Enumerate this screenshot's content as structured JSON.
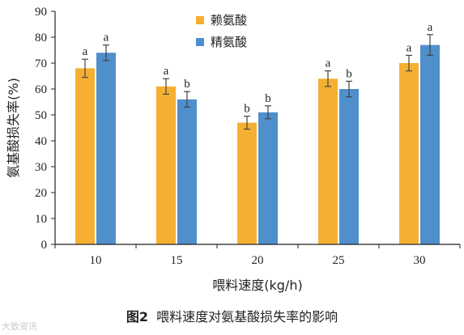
{
  "chart_data": {
    "type": "bar",
    "categories": [
      "10",
      "15",
      "20",
      "25",
      "30"
    ],
    "xlabel": "喂料速度(kg/h)",
    "ylabel": "氨基酸损失率(%)",
    "ylim": [
      0,
      90
    ],
    "yticks": [
      0,
      10,
      20,
      30,
      40,
      50,
      60,
      70,
      80,
      90
    ],
    "legend_position": "top-center",
    "series": [
      {
        "name": "赖氨酸",
        "color": "#F5B031",
        "values": [
          68,
          61,
          47,
          64,
          70
        ],
        "errors": [
          3.5,
          3,
          2.5,
          3,
          3
        ],
        "labels": [
          "a",
          "a",
          "b",
          "a",
          "a"
        ]
      },
      {
        "name": "精氨酸",
        "color": "#4F8FCB",
        "values": [
          74,
          56,
          51,
          60,
          77
        ],
        "errors": [
          3,
          3,
          2.5,
          3,
          4
        ],
        "labels": [
          "a",
          "b",
          "b",
          "b",
          "a"
        ]
      }
    ]
  },
  "caption": {
    "figure_number": "图2",
    "text": "喂料速度对氨基酸损失率的影响"
  },
  "watermark": "大致资讯"
}
